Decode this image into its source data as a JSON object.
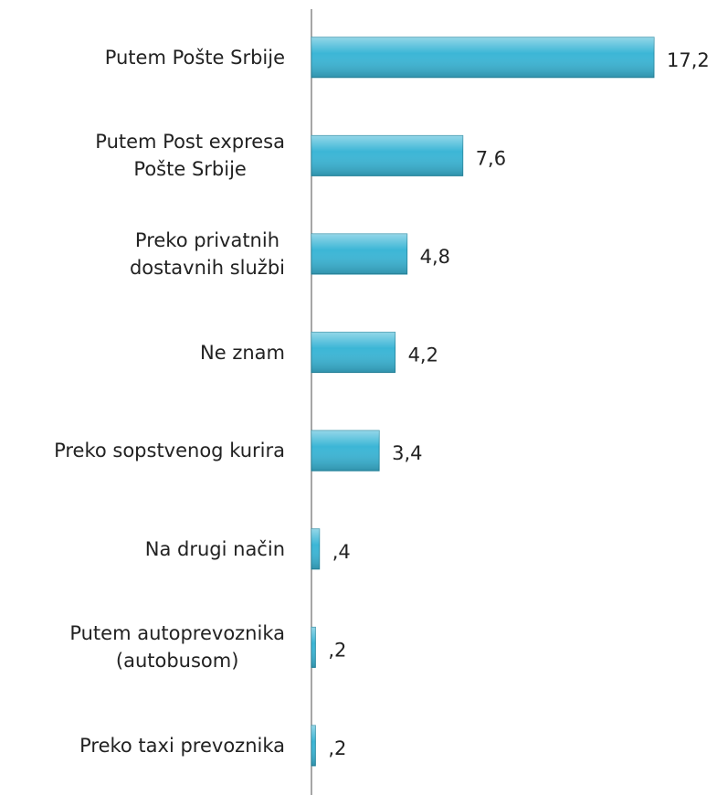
{
  "chart_data": {
    "type": "bar",
    "orientation": "horizontal",
    "categories": [
      "Putem Pošte Srbije",
      "Putem Post expresa\nPošte Srbije",
      "Preko privatnih\ndostavnih službi",
      "Ne znam",
      "Preko sopstvenog kurira",
      "Na drugi način",
      "Putem autoprevoznika\n(autobusom)",
      "Preko taxi prevoznika"
    ],
    "values": [
      17.2,
      7.6,
      4.8,
      4.2,
      3.4,
      0.4,
      0.2,
      0.2
    ],
    "value_labels": [
      "17,2",
      "7,6",
      "4,8",
      "4,2",
      "3,4",
      ",4",
      ",2",
      ",2"
    ],
    "color": "#3cb6d6"
  }
}
